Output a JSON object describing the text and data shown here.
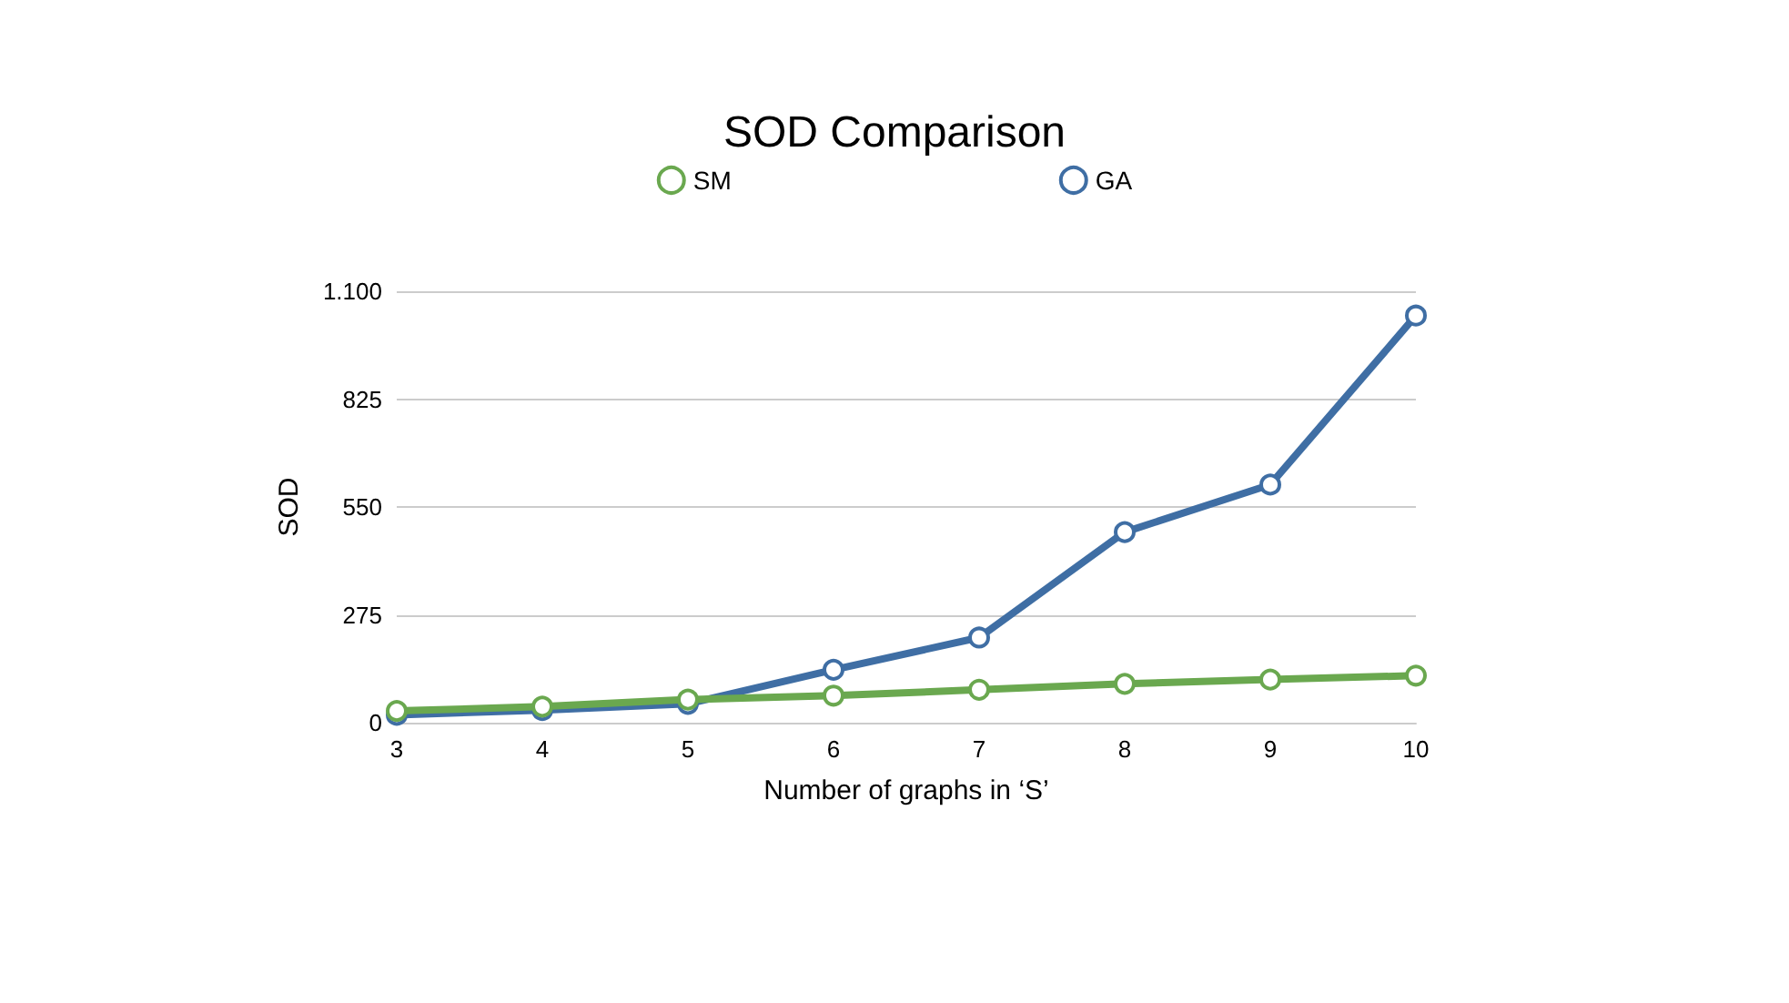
{
  "chart_data": {
    "type": "line",
    "title": "SOD Comparison",
    "xlabel": "Number of graphs in ‘S’",
    "ylabel": "SOD",
    "categories": [
      "3",
      "4",
      "5",
      "6",
      "7",
      "8",
      "9",
      "10"
    ],
    "series": [
      {
        "name": "SM",
        "color": "#6aa84f",
        "values": [
          30,
          41,
          59,
          69,
          84,
          99,
          110,
          120
        ]
      },
      {
        "name": "GA",
        "color": "#3f6ea4",
        "values": [
          20,
          32,
          48,
          135,
          217,
          486,
          607,
          1038
        ]
      }
    ],
    "ylim": [
      0,
      1100
    ],
    "yticks": [
      0,
      275,
      550,
      825,
      {
        "value": 1100,
        "label": "1.100"
      }
    ],
    "grid": "y",
    "legend": "top",
    "marker": "circle",
    "line_style": "solid"
  }
}
